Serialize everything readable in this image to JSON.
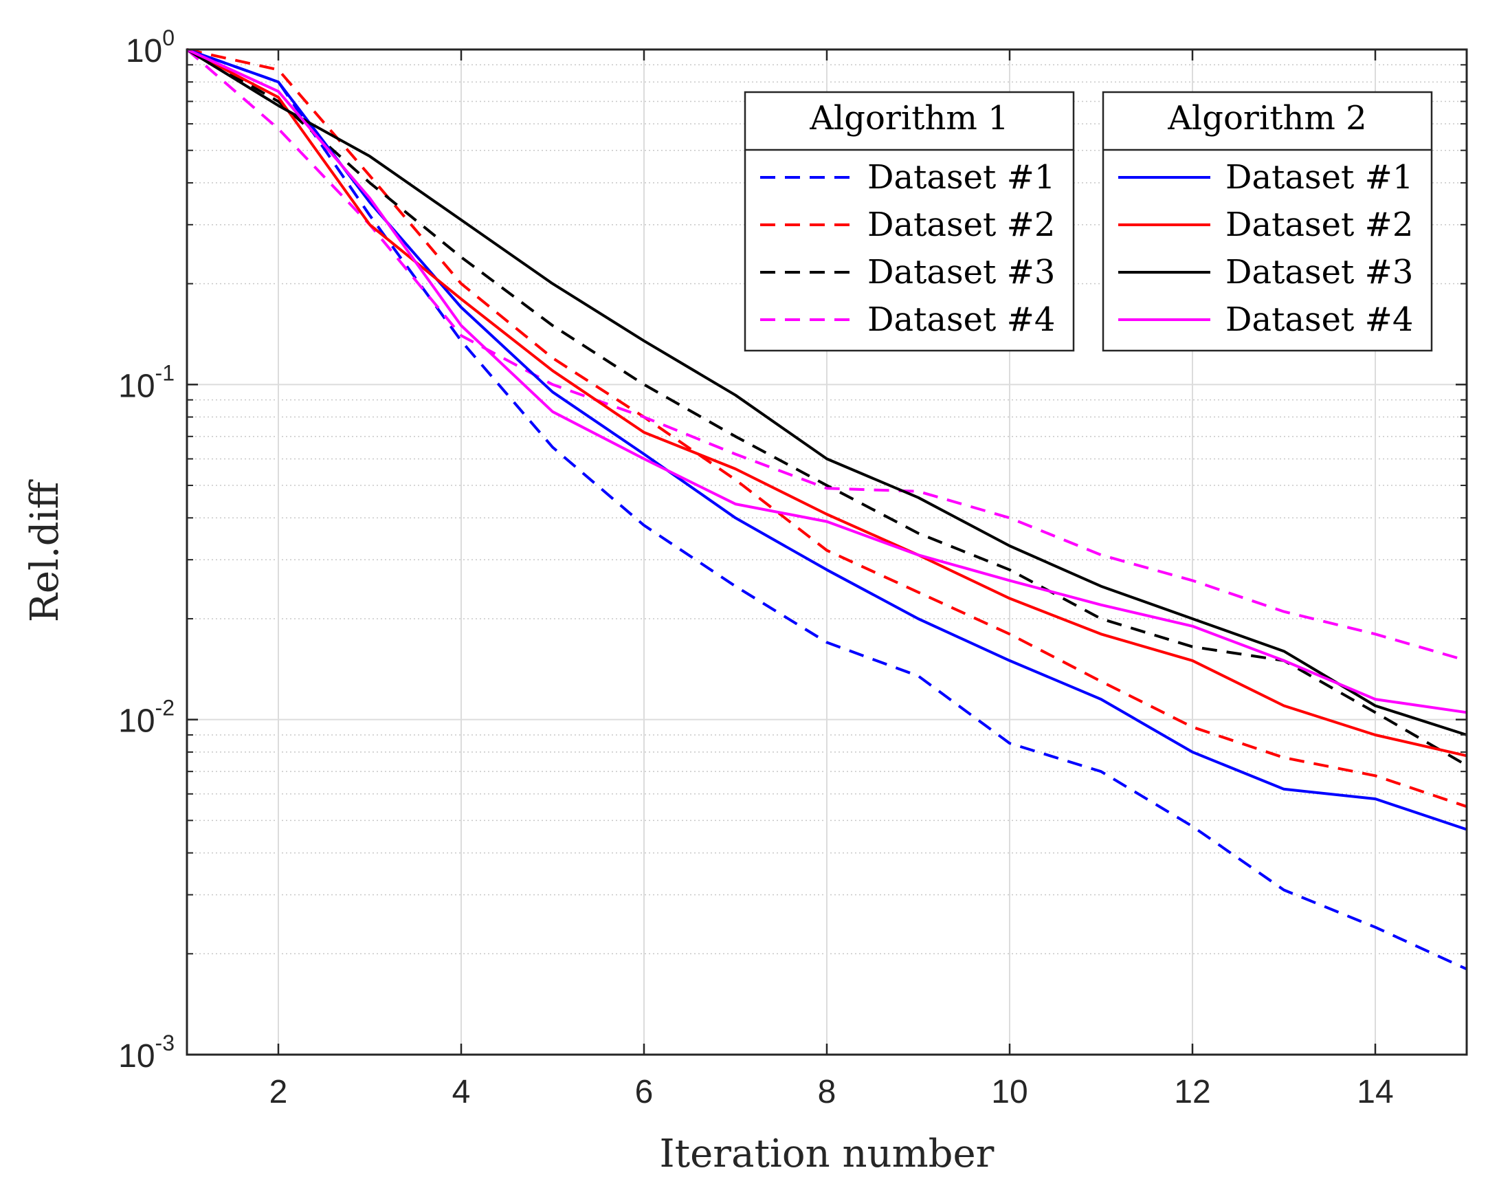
{
  "chart_data": {
    "type": "line",
    "title": "",
    "xlabel": "Iteration number",
    "ylabel": "Rel.diff",
    "xlim": [
      1,
      15
    ],
    "ylim": [
      0.001,
      1
    ],
    "yscale": "log",
    "grid": true,
    "x": [
      1,
      2,
      3,
      4,
      5,
      6,
      7,
      8,
      9,
      10,
      11,
      12,
      13,
      14,
      15
    ],
    "x_ticks": [
      2,
      4,
      6,
      8,
      10,
      12,
      14
    ],
    "x_tick_labels": [
      "2",
      "4",
      "6",
      "8",
      "10",
      "12",
      "14"
    ],
    "y_ticks": [
      1,
      0.1,
      0.01,
      0.001
    ],
    "y_tick_labels": [
      {
        "base": "10",
        "exp": "0"
      },
      {
        "base": "10",
        "exp": "-1"
      },
      {
        "base": "10",
        "exp": "-2"
      },
      {
        "base": "10",
        "exp": "-3"
      }
    ],
    "legends": [
      {
        "title": "Algorithm 1",
        "style": "dashed",
        "position": "top-center",
        "entries": [
          "Dataset #1",
          "Dataset #2",
          "Dataset #3",
          "Dataset #4"
        ]
      },
      {
        "title": "Algorithm 2",
        "style": "solid",
        "position": "top-right",
        "entries": [
          "Dataset #1",
          "Dataset #2",
          "Dataset #3",
          "Dataset #4"
        ]
      }
    ],
    "series": [
      {
        "name": "Algorithm 1 Dataset #1",
        "legend": "Algorithm 1",
        "label": "Dataset #1",
        "color": "#0000ff",
        "style": "dashed",
        "values": [
          1.0,
          0.8,
          0.32,
          0.135,
          0.065,
          0.038,
          0.025,
          0.017,
          0.0135,
          0.0085,
          0.007,
          0.0048,
          0.0031,
          0.0024,
          0.0018
        ]
      },
      {
        "name": "Algorithm 1 Dataset #2",
        "legend": "Algorithm 1",
        "label": "Dataset #2",
        "color": "#ff0000",
        "style": "dashed",
        "values": [
          1.0,
          0.87,
          0.42,
          0.2,
          0.12,
          0.08,
          0.052,
          0.032,
          0.024,
          0.018,
          0.013,
          0.0095,
          0.0077,
          0.0068,
          0.0055
        ]
      },
      {
        "name": "Algorithm 1 Dataset #3",
        "legend": "Algorithm 1",
        "label": "Dataset #3",
        "color": "#000000",
        "style": "dashed",
        "values": [
          1.0,
          0.7,
          0.4,
          0.24,
          0.15,
          0.1,
          0.07,
          0.05,
          0.036,
          0.028,
          0.02,
          0.0165,
          0.015,
          0.0105,
          0.0073
        ]
      },
      {
        "name": "Algorithm 1 Dataset #4",
        "legend": "Algorithm 1",
        "label": "Dataset #4",
        "color": "#ff00ff",
        "style": "dashed",
        "values": [
          1.0,
          0.58,
          0.3,
          0.14,
          0.1,
          0.08,
          0.062,
          0.049,
          0.048,
          0.04,
          0.031,
          0.026,
          0.021,
          0.018,
          0.015
        ]
      },
      {
        "name": "Algorithm 2 Dataset #1",
        "legend": "Algorithm 2",
        "label": "Dataset #1",
        "color": "#0000ff",
        "style": "solid",
        "values": [
          1.0,
          0.8,
          0.35,
          0.17,
          0.095,
          0.062,
          0.04,
          0.028,
          0.02,
          0.015,
          0.0115,
          0.008,
          0.0062,
          0.0058,
          0.0047
        ]
      },
      {
        "name": "Algorithm 2 Dataset #2",
        "legend": "Algorithm 2",
        "label": "Dataset #2",
        "color": "#ff0000",
        "style": "solid",
        "values": [
          1.0,
          0.72,
          0.3,
          0.18,
          0.11,
          0.072,
          0.056,
          0.041,
          0.031,
          0.023,
          0.018,
          0.015,
          0.011,
          0.009,
          0.0078
        ]
      },
      {
        "name": "Algorithm 2 Dataset #3",
        "legend": "Algorithm 2",
        "label": "Dataset #3",
        "color": "#000000",
        "style": "solid",
        "values": [
          1.0,
          0.68,
          0.48,
          0.31,
          0.2,
          0.135,
          0.093,
          0.06,
          0.046,
          0.033,
          0.025,
          0.02,
          0.016,
          0.011,
          0.009
        ]
      },
      {
        "name": "Algorithm 2 Dataset #4",
        "legend": "Algorithm 2",
        "label": "Dataset #4",
        "color": "#ff00ff",
        "style": "solid",
        "values": [
          1.0,
          0.75,
          0.36,
          0.15,
          0.083,
          0.06,
          0.044,
          0.039,
          0.031,
          0.026,
          0.022,
          0.019,
          0.015,
          0.0115,
          0.0105
        ]
      }
    ]
  }
}
